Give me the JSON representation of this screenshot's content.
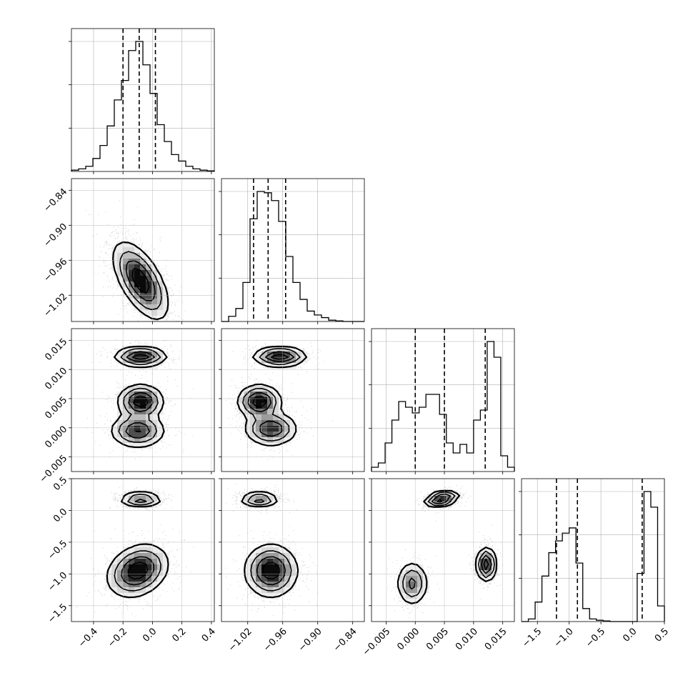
{
  "chart_data": {
    "type": "corner",
    "parameters": [
      {
        "range": [
          -0.55,
          0.42
        ],
        "ticks": [
          -0.4,
          -0.2,
          0.0,
          0.2,
          0.4
        ],
        "tick_labels": [
          "−0.4",
          "−0.2",
          "0.0",
          "0.2",
          "0.4"
        ],
        "quantiles": [
          -0.2,
          -0.09,
          0.02
        ]
      },
      {
        "range": [
          -1.065,
          -0.82
        ],
        "ticks": [
          -1.02,
          -0.96,
          -0.9,
          -0.84
        ],
        "tick_labels": [
          "−1.02",
          "−0.96",
          "−0.90",
          "−0.84"
        ],
        "quantiles": [
          -1.01,
          -0.985,
          -0.955
        ]
      },
      {
        "range": [
          -0.0075,
          0.017
        ],
        "ticks": [
          -0.005,
          0.0,
          0.005,
          0.01,
          0.015
        ],
        "tick_labels": [
          "−0.005",
          "0.000",
          "0.005",
          "0.010",
          "0.015"
        ],
        "quantiles": [
          0.0,
          0.005,
          0.012
        ]
      },
      {
        "range": [
          -1.75,
          0.5
        ],
        "ticks": [
          -1.5,
          -1.0,
          -0.5,
          0.0,
          0.5
        ],
        "tick_labels": [
          "−1.5",
          "−1.0",
          "−0.5",
          "0.0",
          "0.5"
        ],
        "quantiles": [
          -1.2,
          -0.87,
          0.15
        ]
      }
    ],
    "histograms": [
      [
        0.01,
        0.02,
        0.04,
        0.1,
        0.2,
        0.35,
        0.55,
        0.7,
        0.93,
        1.0,
        0.82,
        0.6,
        0.36,
        0.23,
        0.13,
        0.08,
        0.04,
        0.02,
        0.01,
        0.005
      ],
      [
        0.0,
        0.04,
        0.1,
        0.3,
        0.79,
        1.0,
        0.99,
        0.93,
        0.77,
        0.5,
        0.3,
        0.17,
        0.08,
        0.05,
        0.03,
        0.01,
        0.005,
        0.0,
        0.0,
        0.0
      ],
      [
        0.03,
        0.06,
        0.2,
        0.36,
        0.49,
        0.45,
        0.41,
        0.45,
        0.54,
        0.54,
        0.4,
        0.2,
        0.13,
        0.19,
        0.13,
        0.36,
        0.43,
        0.91,
        0.8,
        0.11,
        0.03
      ],
      [
        0.0,
        0.02,
        0.15,
        0.35,
        0.53,
        0.62,
        0.68,
        0.72,
        0.45,
        0.1,
        0.02,
        0.01,
        0.005,
        0.0,
        0.0,
        0.0,
        0.0,
        0.37,
        1.0,
        0.88,
        0.12
      ]
    ],
    "panels": [
      {
        "row": 1,
        "col": 0,
        "modes": [
          {
            "x": -0.08,
            "y": -0.995,
            "sx": 0.09,
            "sy": 0.032,
            "rho": -0.6,
            "w": 1.0
          }
        ]
      },
      {
        "row": 2,
        "col": 0,
        "modes": [
          {
            "x": -0.08,
            "y": 0.0122,
            "sx": 0.085,
            "sy": 0.0008,
            "rho": 0.0,
            "w": 0.55
          },
          {
            "x": -0.08,
            "y": 0.0045,
            "sx": 0.075,
            "sy": 0.0014,
            "rho": 0.0,
            "w": 0.55
          },
          {
            "x": -0.1,
            "y": -0.0005,
            "sx": 0.09,
            "sy": 0.0014,
            "rho": 0.0,
            "w": 0.45
          }
        ]
      },
      {
        "row": 2,
        "col": 1,
        "modes": [
          {
            "x": -0.965,
            "y": 0.0122,
            "sx": 0.022,
            "sy": 0.0008,
            "rho": 0.0,
            "w": 0.55
          },
          {
            "x": -1.0,
            "y": 0.0045,
            "sx": 0.018,
            "sy": 0.0014,
            "rho": 0.0,
            "w": 0.55
          },
          {
            "x": -0.98,
            "y": -0.0002,
            "sx": 0.022,
            "sy": 0.0014,
            "rho": 0.0,
            "w": 0.45
          }
        ]
      },
      {
        "row": 3,
        "col": 0,
        "modes": [
          {
            "x": -0.08,
            "y": 0.17,
            "sx": 0.07,
            "sy": 0.055,
            "rho": 0.0,
            "w": 0.55
          },
          {
            "x": -0.1,
            "y": -0.95,
            "sx": 0.1,
            "sy": 0.2,
            "rho": 0.25,
            "w": 0.75
          }
        ]
      },
      {
        "row": 3,
        "col": 1,
        "modes": [
          {
            "x": -1.0,
            "y": 0.17,
            "sx": 0.016,
            "sy": 0.055,
            "rho": 0.0,
            "w": 0.55
          },
          {
            "x": -0.98,
            "y": -0.95,
            "sx": 0.022,
            "sy": 0.2,
            "rho": 0.0,
            "w": 0.75
          }
        ]
      },
      {
        "row": 3,
        "col": 2,
        "modes": [
          {
            "x": 0.0045,
            "y": 0.18,
            "sx": 0.0014,
            "sy": 0.06,
            "rho": 0.4,
            "w": 0.6
          },
          {
            "x": -0.0005,
            "y": -1.15,
            "sx": 0.0013,
            "sy": 0.17,
            "rho": 0.0,
            "w": 0.35
          },
          {
            "x": 0.0122,
            "y": -0.85,
            "sx": 0.0008,
            "sy": 0.13,
            "rho": 0.0,
            "w": 0.55
          }
        ]
      }
    ],
    "grid": true
  }
}
